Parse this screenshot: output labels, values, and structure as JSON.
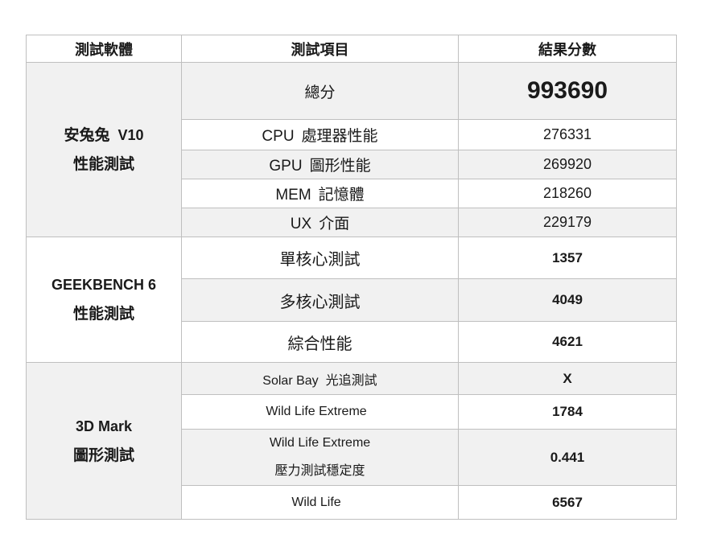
{
  "table": {
    "header": {
      "software": "測試軟體",
      "item": "測試項目",
      "score": "結果分數"
    },
    "sections": [
      {
        "software": {
          "zh1": "安兔兔",
          "latin1": "V10",
          "zh2": "性能測試"
        },
        "rows": [
          {
            "latin": "",
            "zh": "總分",
            "value": "993690"
          },
          {
            "latin": "CPU",
            "zh": "處理器性能",
            "value": "276331"
          },
          {
            "latin": "GPU",
            "zh": "圖形性能",
            "value": "269920"
          },
          {
            "latin": "MEM",
            "zh": "記憶體",
            "value": "218260"
          },
          {
            "latin": "UX",
            "zh": "介面",
            "value": "229179"
          }
        ]
      },
      {
        "software": {
          "zh1": "",
          "latin1": "GEEKBENCH 6",
          "zh2": "性能測試"
        },
        "rows": [
          {
            "latin": "",
            "zh": "單核心測試",
            "value": "1357"
          },
          {
            "latin": "",
            "zh": "多核心測試",
            "value": "4049"
          },
          {
            "latin": "",
            "zh": "綜合性能",
            "value": "4621"
          }
        ]
      },
      {
        "software": {
          "zh1": "",
          "latin1": "3D Mark",
          "zh2": "圖形測試"
        },
        "rows": [
          {
            "latin": "Solar Bay",
            "zh": "光追測試",
            "value": "X"
          },
          {
            "latin": "Wild Life Extreme",
            "zh": "",
            "value": "1784"
          },
          {
            "latin": "Wild Life Extreme",
            "zh": "壓力測試穩定度",
            "value": "0.441"
          },
          {
            "latin": "Wild Life",
            "zh": "",
            "value": "6567"
          }
        ]
      }
    ],
    "colors": {
      "band_background": "#f1f1f1",
      "border": "#bfbfbf",
      "text": "#1a1a1a"
    }
  }
}
